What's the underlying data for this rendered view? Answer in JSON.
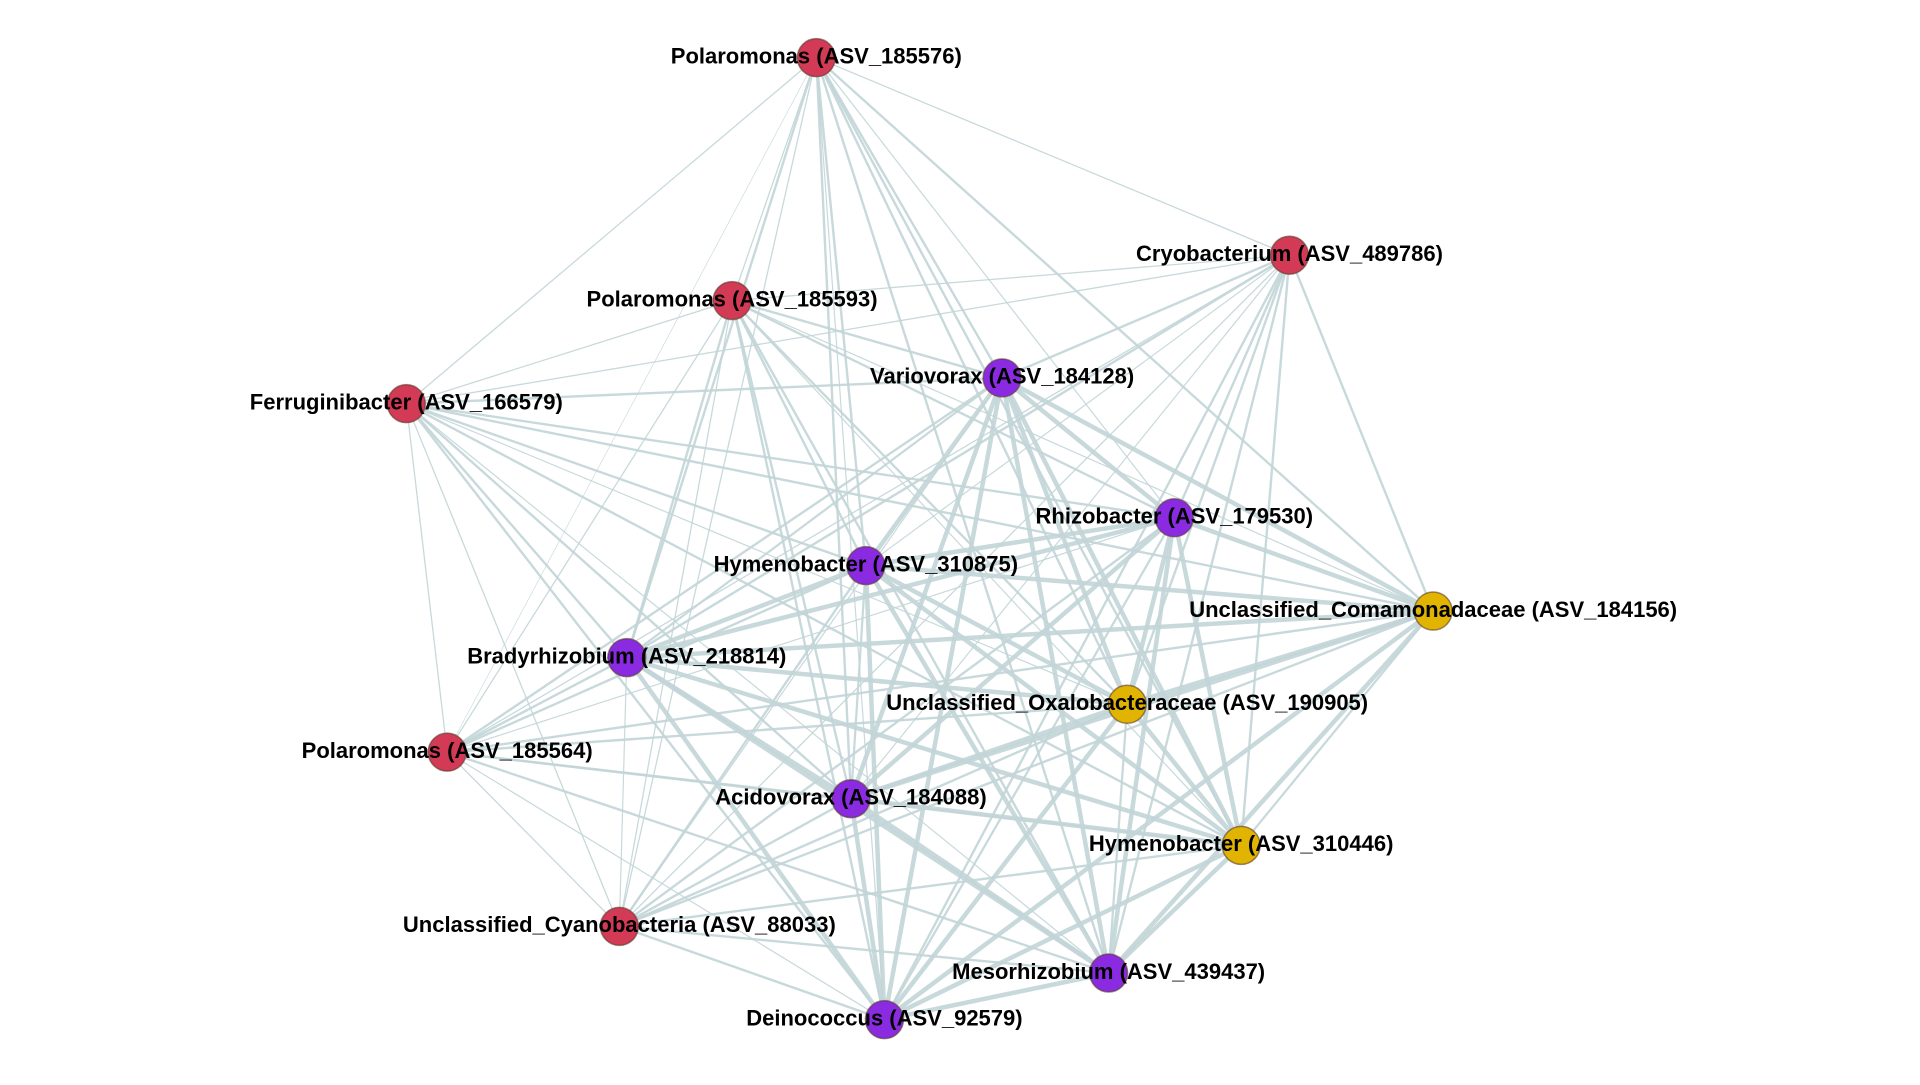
{
  "nodes": [
    {
      "label": "Polaromonas (ASV_185576)",
      "color": "#d23a55"
    },
    {
      "label": "Cryobacterium (ASV_489786)",
      "color": "#d23a55"
    },
    {
      "label": "Polaromonas (ASV_185593)",
      "color": "#d23a55"
    },
    {
      "label": "Variovorax (ASV_184128)",
      "color": "#8a2be2"
    },
    {
      "label": "Ferruginibacter (ASV_166579)",
      "color": "#d23a55"
    },
    {
      "label": "Rhizobacter (ASV_179530)",
      "color": "#8a2be2"
    },
    {
      "label": "Hymenobacter (ASV_310875)",
      "color": "#8a2be2"
    },
    {
      "label": "Unclassified_Comamonadaceae (ASV_184156)",
      "color": "#e0b400"
    },
    {
      "label": "Bradyrhizobium (ASV_218814)",
      "color": "#8a2be2"
    },
    {
      "label": "Unclassified_Oxalobacteraceae (ASV_190905)",
      "color": "#e0b400"
    },
    {
      "label": "Polaromonas (ASV_185564)",
      "color": "#d23a55"
    },
    {
      "label": "Acidovorax (ASV_184088)",
      "color": "#8a2be2"
    },
    {
      "label": "Hymenobacter (ASV_310446)",
      "color": "#e0b400"
    },
    {
      "label": "Unclassified_Cyanobacteria (ASV_88033)",
      "color": "#d23a55"
    },
    {
      "label": "Mesorhizobium (ASV_439437)",
      "color": "#8a2be2"
    },
    {
      "label": "Deinococcus (ASV_92579)",
      "color": "#8a2be2"
    }
  ]
}
